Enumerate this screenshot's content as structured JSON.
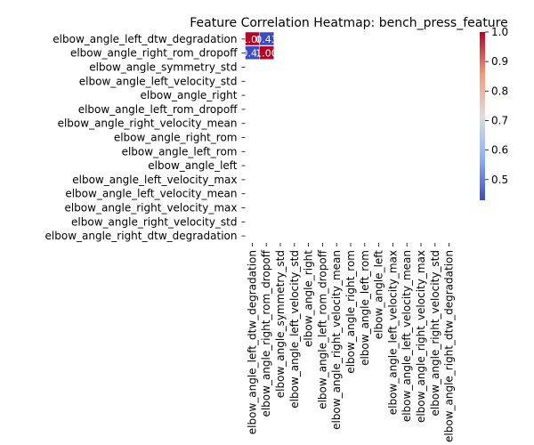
{
  "chart_data": {
    "type": "heatmap",
    "title": "Feature Correlation Heatmap: bench_press_feature",
    "xlabel": "",
    "ylabel": "",
    "labels": [
      "elbow_angle_left_dtw_degradation",
      "elbow_angle_right_rom_dropoff",
      "elbow_angle_symmetry_std",
      "elbow_angle_left_velocity_std",
      "elbow_angle_right",
      "elbow_angle_left_rom_dropoff",
      "elbow_angle_right_velocity_mean",
      "elbow_angle_right_rom",
      "elbow_angle_left_rom",
      "elbow_angle_left",
      "elbow_angle_left_velocity_max",
      "elbow_angle_left_velocity_mean",
      "elbow_angle_right_velocity_max",
      "elbow_angle_right_velocity_std",
      "elbow_angle_right_dtw_degradation"
    ],
    "cells": [
      {
        "row": 0,
        "col": 0,
        "value": 1.0,
        "label": "1.00"
      },
      {
        "row": 0,
        "col": 1,
        "value": 0.43,
        "label": "0.43"
      },
      {
        "row": 1,
        "col": 0,
        "value": 0.43,
        "label": "0.43"
      },
      {
        "row": 1,
        "col": 1,
        "value": 1.0,
        "label": "1.00"
      }
    ],
    "colorbar": {
      "min": 0.43,
      "max": 1.0,
      "ticks": [
        "0.5",
        "0.6",
        "0.7",
        "0.8",
        "0.9",
        "1.0"
      ],
      "tick_values": [
        0.5,
        0.6,
        0.7,
        0.8,
        0.9,
        1.0
      ],
      "colormap": "coolwarm"
    },
    "grid": false,
    "legend": "colorbar-right"
  }
}
